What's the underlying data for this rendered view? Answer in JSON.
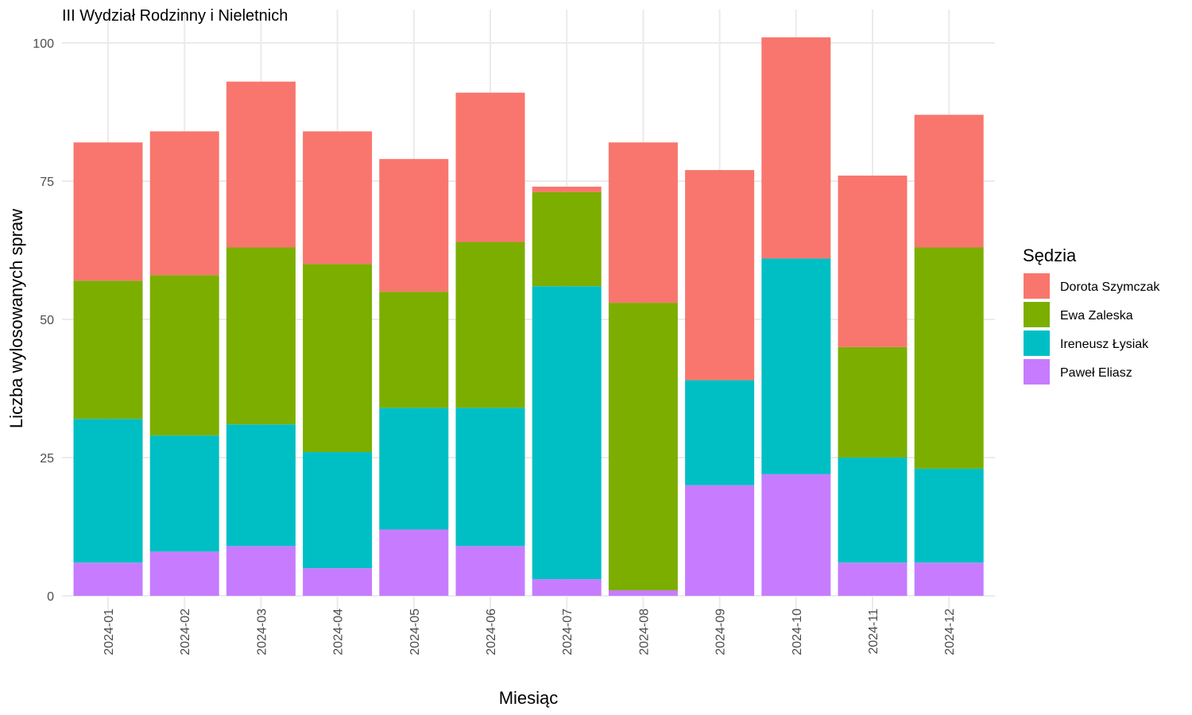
{
  "chart_data": {
    "type": "bar",
    "stacked": true,
    "title": "III Wydział Rodzinny i Nieletnich",
    "xlabel": "Miesiąc",
    "ylabel": "Liczba wylosowanych spraw",
    "ylim": [
      0,
      104
    ],
    "yticks": [
      0,
      25,
      50,
      75,
      100
    ],
    "grid": true,
    "legend_title": "Sędzia",
    "legend_position": "right",
    "categories": [
      "2024-01",
      "2024-02",
      "2024-03",
      "2024-04",
      "2024-05",
      "2024-06",
      "2024-07",
      "2024-08",
      "2024-09",
      "2024-10",
      "2024-11",
      "2024-12"
    ],
    "series": [
      {
        "name": "Paweł Eliasz",
        "color": "#C77CFF",
        "values": [
          6,
          8,
          9,
          5,
          12,
          9,
          3,
          1,
          20,
          22,
          6,
          6
        ]
      },
      {
        "name": "Ireneusz Łysiak",
        "color": "#00BFC4",
        "values": [
          26,
          21,
          22,
          21,
          22,
          25,
          53,
          0,
          19,
          39,
          19,
          17
        ]
      },
      {
        "name": "Ewa Zaleska",
        "color": "#7CAE00",
        "values": [
          25,
          29,
          32,
          34,
          21,
          30,
          17,
          52,
          0,
          0,
          20,
          40
        ]
      },
      {
        "name": "Dorota Szymczak",
        "color": "#F8766D",
        "values": [
          25,
          26,
          30,
          24,
          24,
          27,
          1,
          29,
          38,
          40,
          31,
          24
        ]
      }
    ],
    "legend_order": [
      "Dorota Szymczak",
      "Ewa Zaleska",
      "Ireneusz Łysiak",
      "Paweł Eliasz"
    ]
  }
}
